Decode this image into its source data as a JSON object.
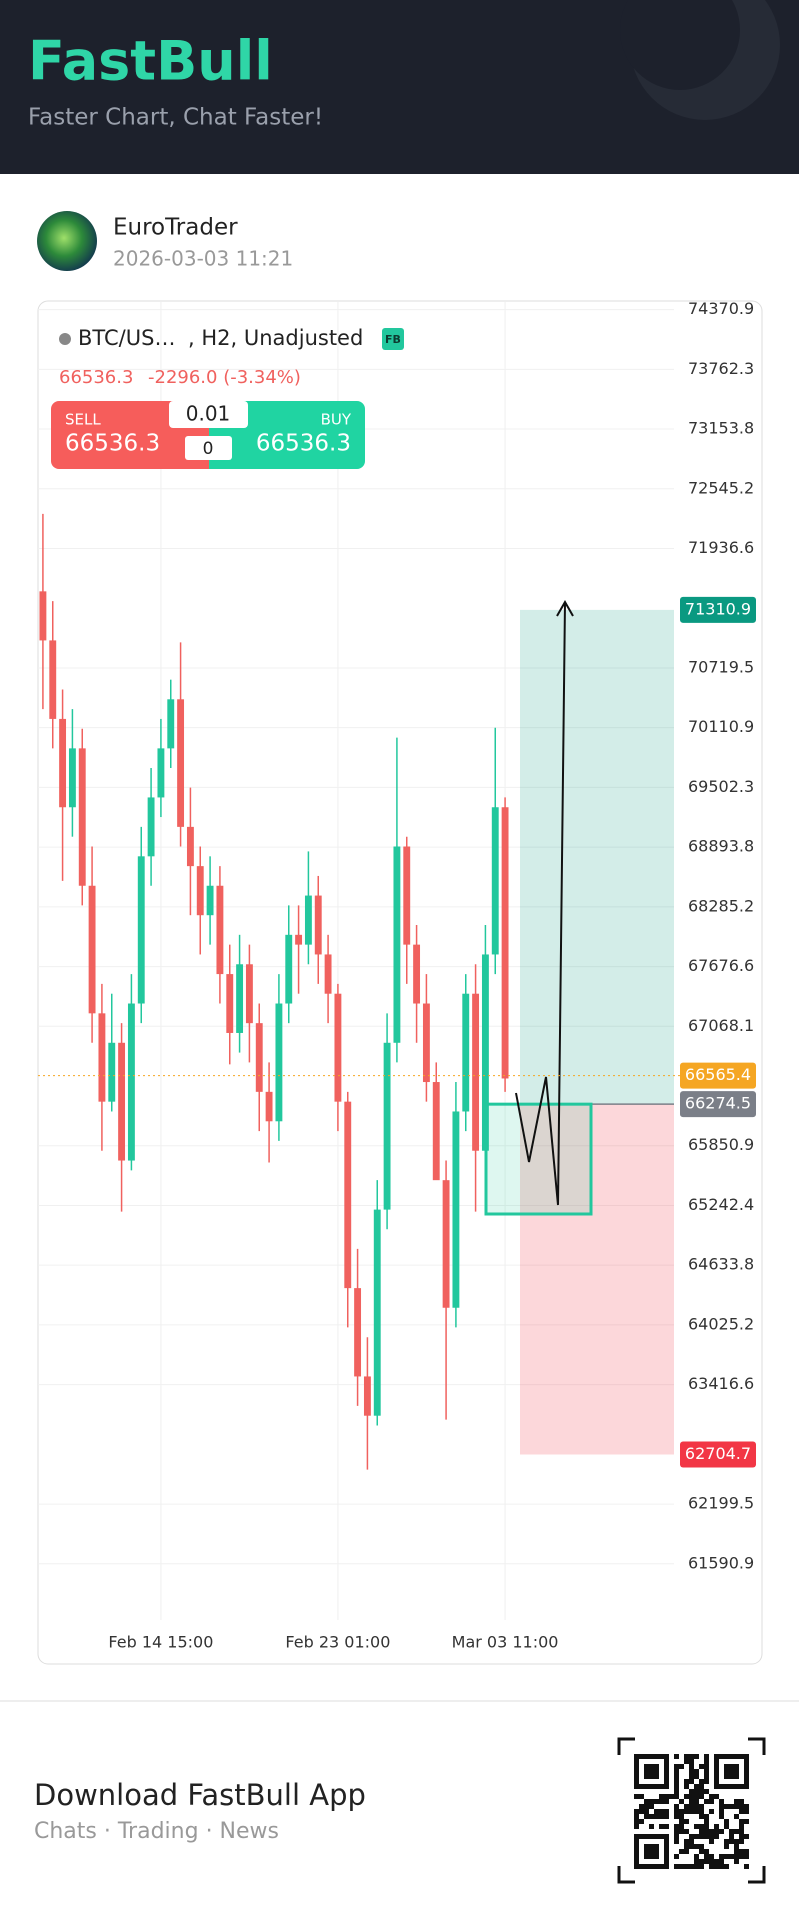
{
  "header": {
    "logo": "FastBull",
    "tagline": "Faster Chart, Chat Faster!"
  },
  "post": {
    "author": "EuroTrader",
    "timestamp": "2026-03-03 11:21"
  },
  "chart_data": {
    "type": "candlestick",
    "symbol": "BTC/US…",
    "interval": ", H2, Unadjusted",
    "badge": "FB",
    "last_price": 66536.3,
    "change": "-2296.0 (-3.34%)",
    "trade": {
      "sell_label": "SELL",
      "sell_price": 66536.3,
      "quantity": 0.01,
      "spread": 0,
      "buy_label": "BUY",
      "buy_price": 66536.3
    },
    "categories": [
      null,
      null,
      null,
      null,
      null,
      null,
      null,
      null,
      null,
      null,
      null,
      null,
      "Feb 14 15:00",
      null,
      null,
      null,
      null,
      null,
      null,
      null,
      null,
      null,
      null,
      null,
      null,
      null,
      null,
      null,
      null,
      null,
      "Feb 23 01:00",
      null,
      null,
      null,
      null,
      null,
      null,
      null,
      null,
      null,
      null,
      null,
      null,
      null,
      null,
      null,
      null,
      "Mar 03 11:00"
    ],
    "open": [
      71500,
      71000,
      70200,
      69300,
      69900,
      68500,
      67200,
      66300,
      66900,
      65700,
      67300,
      68800,
      69400,
      69900,
      70400,
      69100,
      68700,
      68200,
      68500,
      67600,
      67000,
      67700,
      67100,
      66400,
      66100,
      67300,
      68000,
      67900,
      68400,
      67800,
      67400,
      66300,
      64400,
      63500,
      63100,
      65200,
      66900,
      68900,
      67900,
      67300,
      66500,
      65500,
      64200,
      66200,
      67400,
      65800,
      67800,
      69300
    ],
    "high": [
      72290,
      71400,
      70500,
      70300,
      70100,
      68900,
      67500,
      67400,
      67100,
      67600,
      69100,
      69700,
      70200,
      70600,
      70980,
      69500,
      68900,
      68800,
      68700,
      67900,
      68000,
      67900,
      67300,
      66700,
      67600,
      68300,
      68300,
      68850,
      68600,
      68000,
      67500,
      66400,
      64800,
      63900,
      65500,
      67200,
      70010,
      69000,
      68100,
      67600,
      66700,
      65700,
      66500,
      67600,
      67700,
      68100,
      70110,
      69400
    ],
    "low": [
      70300,
      69900,
      68550,
      69000,
      68300,
      66900,
      65800,
      66200,
      65180,
      65600,
      67100,
      68500,
      69200,
      69700,
      68900,
      68200,
      67800,
      67900,
      67300,
      66680,
      66800,
      66700,
      66000,
      65680,
      65900,
      67100,
      67400,
      67700,
      67500,
      67100,
      66000,
      64000,
      63200,
      62550,
      63000,
      65000,
      66700,
      67500,
      66900,
      66300,
      65570,
      63060,
      64000,
      66000,
      65180,
      65600,
      67600,
      66400
    ],
    "close": [
      71000,
      70200,
      69300,
      69900,
      68500,
      67200,
      66300,
      66900,
      65700,
      67300,
      68800,
      69400,
      69900,
      70400,
      69100,
      68700,
      68200,
      68500,
      67600,
      67000,
      67700,
      67100,
      66400,
      66100,
      67300,
      68000,
      67900,
      68400,
      67800,
      67400,
      66300,
      64400,
      63500,
      63100,
      65200,
      66900,
      68900,
      67900,
      67300,
      66500,
      65500,
      64200,
      66200,
      67400,
      65800,
      67800,
      69300,
      66536.3
    ],
    "up_color": "#22c79d",
    "down_color": "#f0615e",
    "ylim": [
      61590.9,
      74370.9
    ],
    "yticks": [
      74370.9,
      73762.3,
      73153.8,
      72545.2,
      71936.6,
      70719.5,
      70110.9,
      69502.3,
      68893.8,
      68285.2,
      67676.6,
      67068.1,
      65850.9,
      65242.4,
      64633.8,
      64025.2,
      63416.6,
      62199.5,
      61590.9
    ],
    "grid": true,
    "price_lines": [
      {
        "value": 66565.4,
        "color": "#f5a623"
      },
      {
        "value": 66274.5,
        "color": "#7b7f88"
      }
    ],
    "position": {
      "target": 71310.9,
      "entry": 66274.5,
      "stop": 62704.7,
      "target_color": "#0a9981",
      "stop_color": "#f23645"
    }
  },
  "footer": {
    "title": "Download FastBull App",
    "subtitle": "Chats · Trading · News"
  }
}
